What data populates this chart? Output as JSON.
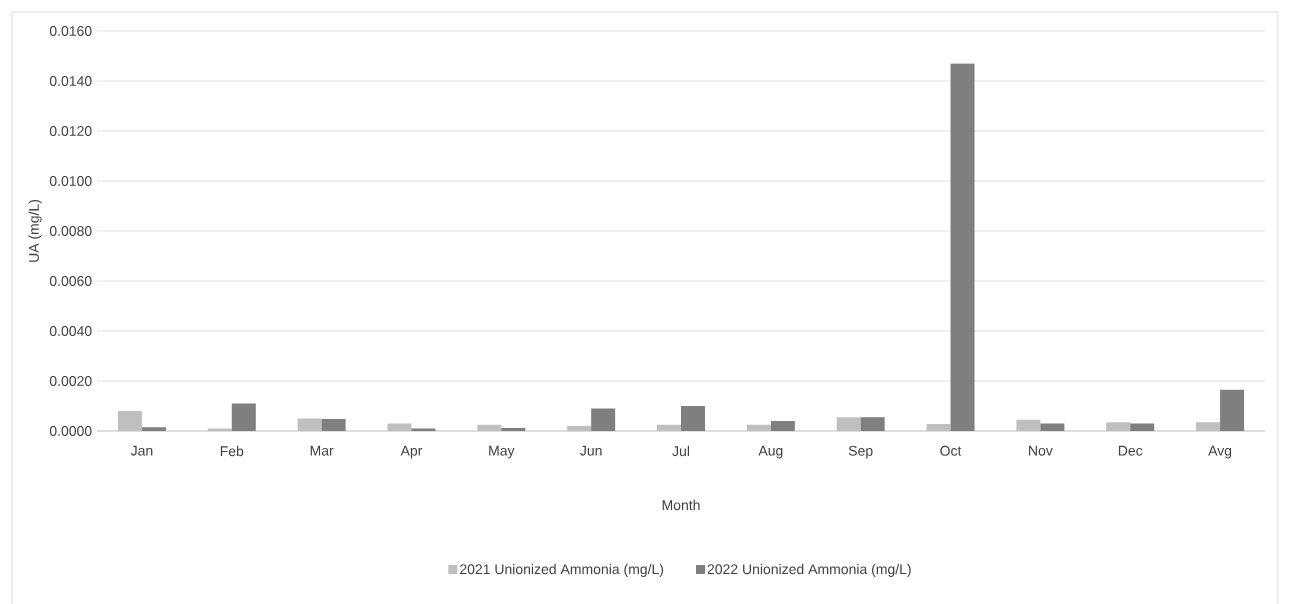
{
  "chart_data": {
    "type": "bar",
    "xlabel": "Month",
    "ylabel": "UA (mg/L)",
    "categories": [
      "Jan",
      "Feb",
      "Mar",
      "Apr",
      "May",
      "Jun",
      "Jul",
      "Aug",
      "Sep",
      "Oct",
      "Nov",
      "Dec",
      "Avg"
    ],
    "series": [
      {
        "name": "2021 Unionized Ammonia (mg/L)",
        "color": "#bfbfbf",
        "values": [
          0.0008,
          0.0001,
          0.0005,
          0.0003,
          0.00025,
          0.0002,
          0.00025,
          0.00025,
          0.00055,
          0.00028,
          0.00045,
          0.00035,
          0.00035
        ]
      },
      {
        "name": "2022 Unionized Ammonia (mg/L)",
        "color": "#7f7f7f",
        "values": [
          0.00015,
          0.0011,
          0.00048,
          0.0001,
          0.00012,
          0.0009,
          0.001,
          0.0004,
          0.00055,
          0.0147,
          0.0003,
          0.0003,
          0.00165
        ]
      }
    ],
    "ylim": [
      0,
      0.016
    ],
    "yticks": [
      {
        "value": 0,
        "label": "0.0000"
      },
      {
        "value": 0.002,
        "label": "0.0020"
      },
      {
        "value": 0.004,
        "label": "0.0040"
      },
      {
        "value": 0.006,
        "label": "0.0060"
      },
      {
        "value": 0.008,
        "label": "0.0080"
      },
      {
        "value": 0.01,
        "label": "0.0100"
      },
      {
        "value": 0.012,
        "label": "0.0120"
      },
      {
        "value": 0.014,
        "label": "0.0140"
      },
      {
        "value": 0.016,
        "label": "0.0160"
      }
    ],
    "grid": "y",
    "legend": "bottom"
  }
}
